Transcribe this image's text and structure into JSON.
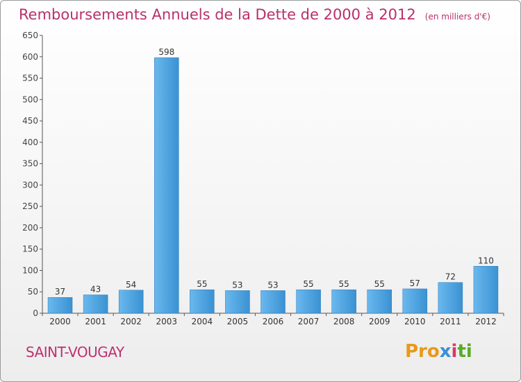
{
  "header": {
    "title": "Remboursements Annuels de la Dette de 2000 à 2012",
    "unit": "(en milliers d'€)"
  },
  "footer": {
    "commune": "SAINT-VOUGAY",
    "brand": "Proxiti",
    "brand_parts": [
      "Pro",
      "x",
      "i",
      "ti"
    ]
  },
  "colors": {
    "title": "#b8306a",
    "bar_top": "#5aaee8",
    "bar_bottom": "#2f86c8",
    "axis": "#555555"
  },
  "chart_data": {
    "type": "bar",
    "title": "Remboursements Annuels de la Dette de 2000 à 2012",
    "xlabel": "",
    "ylabel": "(en milliers d'€)",
    "ylim": [
      0,
      650
    ],
    "yticks": [
      0,
      50,
      100,
      150,
      200,
      250,
      300,
      350,
      400,
      450,
      500,
      550,
      600,
      650
    ],
    "grid": false,
    "categories": [
      "2000",
      "2001",
      "2002",
      "2003",
      "2004",
      "2005",
      "2006",
      "2007",
      "2008",
      "2009",
      "2010",
      "2011",
      "2012"
    ],
    "values": [
      37,
      43,
      54,
      598,
      55,
      53,
      53,
      55,
      55,
      55,
      57,
      72,
      110
    ]
  }
}
